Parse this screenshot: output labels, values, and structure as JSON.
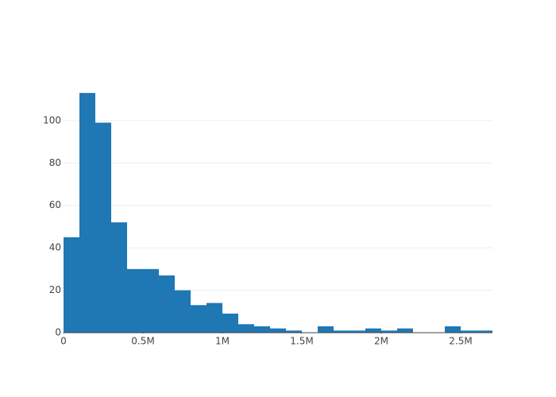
{
  "chart_data": {
    "type": "histogram",
    "bins": [
      0,
      100000,
      200000,
      300000,
      400000,
      500000,
      600000,
      700000,
      800000,
      900000,
      1000000,
      1100000,
      1200000,
      1300000,
      1400000,
      1500000,
      1600000,
      1700000,
      1800000,
      1900000,
      2000000,
      2100000,
      2200000,
      2300000,
      2400000,
      2500000,
      2600000,
      2700000
    ],
    "values": [
      45,
      113,
      99,
      52,
      30,
      30,
      27,
      20,
      13,
      14,
      9,
      4,
      3,
      2,
      1,
      0,
      3,
      1,
      1,
      2,
      1,
      2,
      0,
      0,
      3,
      1,
      1
    ],
    "color": "#1f77b4",
    "xlim": [
      0,
      2700000
    ],
    "xticks": [
      0,
      {
        "value": 500000,
        "label": "0.5M"
      },
      {
        "value": 1000000,
        "label": "1M"
      },
      {
        "value": 1500000,
        "label": "1.5M"
      },
      {
        "value": 2000000,
        "label": "2M"
      },
      {
        "value": 2500000,
        "label": "2.5M"
      }
    ],
    "ylim": [
      0,
      119.4
    ],
    "yticks": [
      0,
      20,
      40,
      60,
      80,
      100
    ],
    "grid": true
  }
}
